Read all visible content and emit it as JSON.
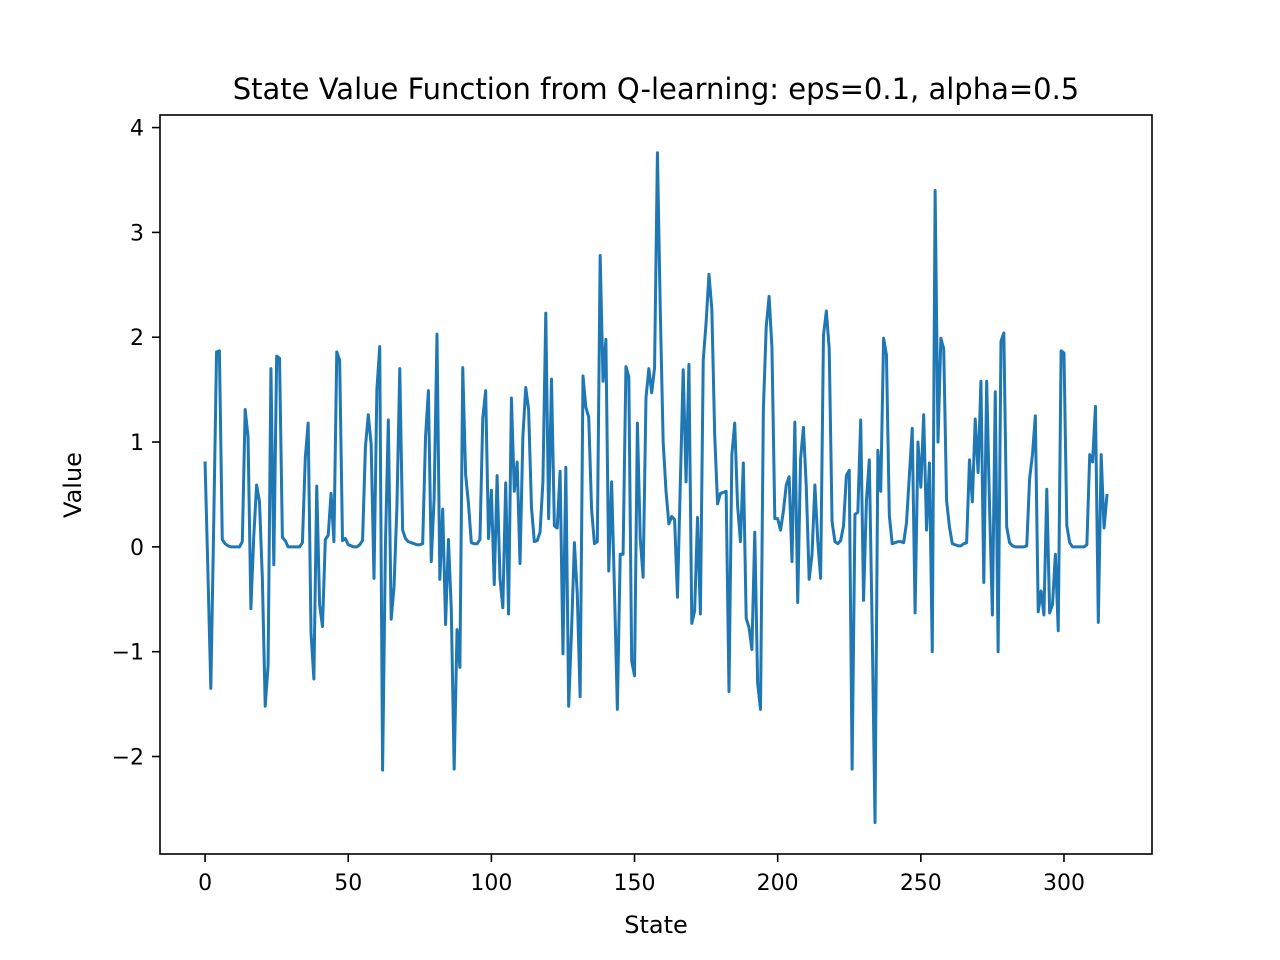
{
  "chart_data": {
    "type": "line",
    "title": "State Value Function from Q-learning: eps=0.1, alpha=0.5",
    "xlabel": "State",
    "ylabel": "Value",
    "xlim": [
      -15.75,
      330.75
    ],
    "ylim": [
      -2.93,
      4.12
    ],
    "xticks": [
      0,
      50,
      100,
      150,
      200,
      250,
      300
    ],
    "xtick_labels": [
      "0",
      "50",
      "100",
      "150",
      "200",
      "250",
      "300"
    ],
    "yticks": [
      -2,
      -1,
      0,
      1,
      2,
      3,
      4
    ],
    "ytick_labels": [
      "−2",
      "−1",
      "0",
      "1",
      "2",
      "3",
      "4"
    ],
    "grid": false,
    "series": [
      {
        "color": "#1f77b4",
        "x_start": 0,
        "values": [
          0.8,
          -0.25,
          -1.35,
          0.2,
          1.86,
          1.87,
          0.07,
          0.03,
          0.01,
          0.0,
          0.0,
          0.0,
          0.0,
          0.05,
          1.31,
          1.05,
          -0.59,
          0.1,
          0.59,
          0.43,
          -0.3,
          -1.52,
          -1.13,
          1.7,
          -0.17,
          1.82,
          1.8,
          0.09,
          0.06,
          0.0,
          0.0,
          0.0,
          0.0,
          0.0,
          0.04,
          0.85,
          1.18,
          -0.82,
          -1.26,
          0.58,
          -0.55,
          -0.76,
          0.07,
          0.11,
          0.51,
          0.05,
          1.86,
          1.78,
          0.06,
          0.08,
          0.02,
          0.01,
          0.0,
          0.0,
          0.02,
          0.06,
          0.95,
          1.26,
          0.98,
          -0.3,
          1.5,
          1.91,
          -2.13,
          0.02,
          1.21,
          -0.69,
          -0.38,
          0.38,
          1.7,
          0.16,
          0.08,
          0.05,
          0.04,
          0.03,
          0.02,
          0.02,
          0.03,
          1.05,
          1.49,
          -0.14,
          0.46,
          2.03,
          -0.31,
          0.36,
          -0.74,
          0.07,
          -0.6,
          -2.12,
          -0.79,
          -1.15,
          1.71,
          0.69,
          0.41,
          0.04,
          0.03,
          0.03,
          0.07,
          1.23,
          1.49,
          0.08,
          0.54,
          -0.36,
          0.68,
          -0.3,
          -0.58,
          0.61,
          -0.64,
          1.42,
          0.53,
          0.81,
          -0.16,
          1.05,
          1.52,
          1.31,
          0.38,
          0.05,
          0.06,
          0.14,
          0.62,
          2.23,
          0.27,
          1.6,
          0.2,
          0.18,
          0.72,
          -1.02,
          0.76,
          -1.52,
          -0.8,
          0.04,
          -0.45,
          -1.43,
          1.63,
          1.33,
          1.24,
          0.36,
          0.03,
          0.05,
          2.78,
          1.58,
          1.98,
          -0.23,
          0.62,
          -0.42,
          -1.55,
          -0.07,
          -0.07,
          1.72,
          1.62,
          -1.09,
          -1.23,
          1.18,
          0.08,
          -0.29,
          1.42,
          1.7,
          1.47,
          1.71,
          3.76,
          2.25,
          1.0,
          0.53,
          0.22,
          0.29,
          0.26,
          -0.48,
          0.61,
          1.69,
          0.62,
          1.74,
          -0.73,
          -0.61,
          0.28,
          -0.64,
          1.78,
          2.14,
          2.6,
          2.27,
          1.07,
          0.41,
          0.51,
          0.52,
          0.53,
          -1.38,
          0.88,
          1.18,
          0.39,
          0.05,
          0.8,
          -0.68,
          -0.77,
          -0.98,
          0.14,
          -1.3,
          -1.55,
          1.31,
          2.1,
          2.39,
          1.9,
          0.27,
          0.27,
          0.16,
          0.34,
          0.59,
          0.67,
          -0.14,
          1.19,
          -0.53,
          0.84,
          1.14,
          0.57,
          -0.31,
          -0.07,
          0.59,
          0.06,
          -0.3,
          2.02,
          2.25,
          1.89,
          0.24,
          0.05,
          0.03,
          0.06,
          0.2,
          0.68,
          0.73,
          -2.12,
          0.31,
          0.33,
          1.21,
          -0.51,
          0.44,
          0.83,
          -0.76,
          -2.63,
          0.92,
          0.53,
          1.99,
          1.83,
          0.3,
          0.03,
          0.04,
          0.05,
          0.05,
          0.04,
          0.23,
          0.68,
          1.13,
          -0.63,
          1.0,
          0.57,
          1.26,
          0.16,
          0.8,
          -1.0,
          3.4,
          1.0,
          1.99,
          1.89,
          0.44,
          0.19,
          0.03,
          0.02,
          0.01,
          0.01,
          0.03,
          0.04,
          0.83,
          0.43,
          1.22,
          0.71,
          1.58,
          -0.34,
          1.58,
          0.39,
          -0.65,
          1.48,
          -1.0,
          1.96,
          2.04,
          0.19,
          0.04,
          0.01,
          0.0,
          0.0,
          0.0,
          0.0,
          0.01,
          0.65,
          0.88,
          1.25,
          -0.62,
          -0.42,
          -0.65,
          0.55,
          -0.63,
          -0.55,
          -0.07,
          -0.8,
          1.87,
          1.85,
          0.2,
          0.04,
          0.0,
          0.0,
          0.0,
          0.0,
          0.0,
          0.02,
          0.88,
          0.81,
          1.34,
          -0.72,
          0.88,
          0.18,
          0.49
        ]
      }
    ]
  }
}
